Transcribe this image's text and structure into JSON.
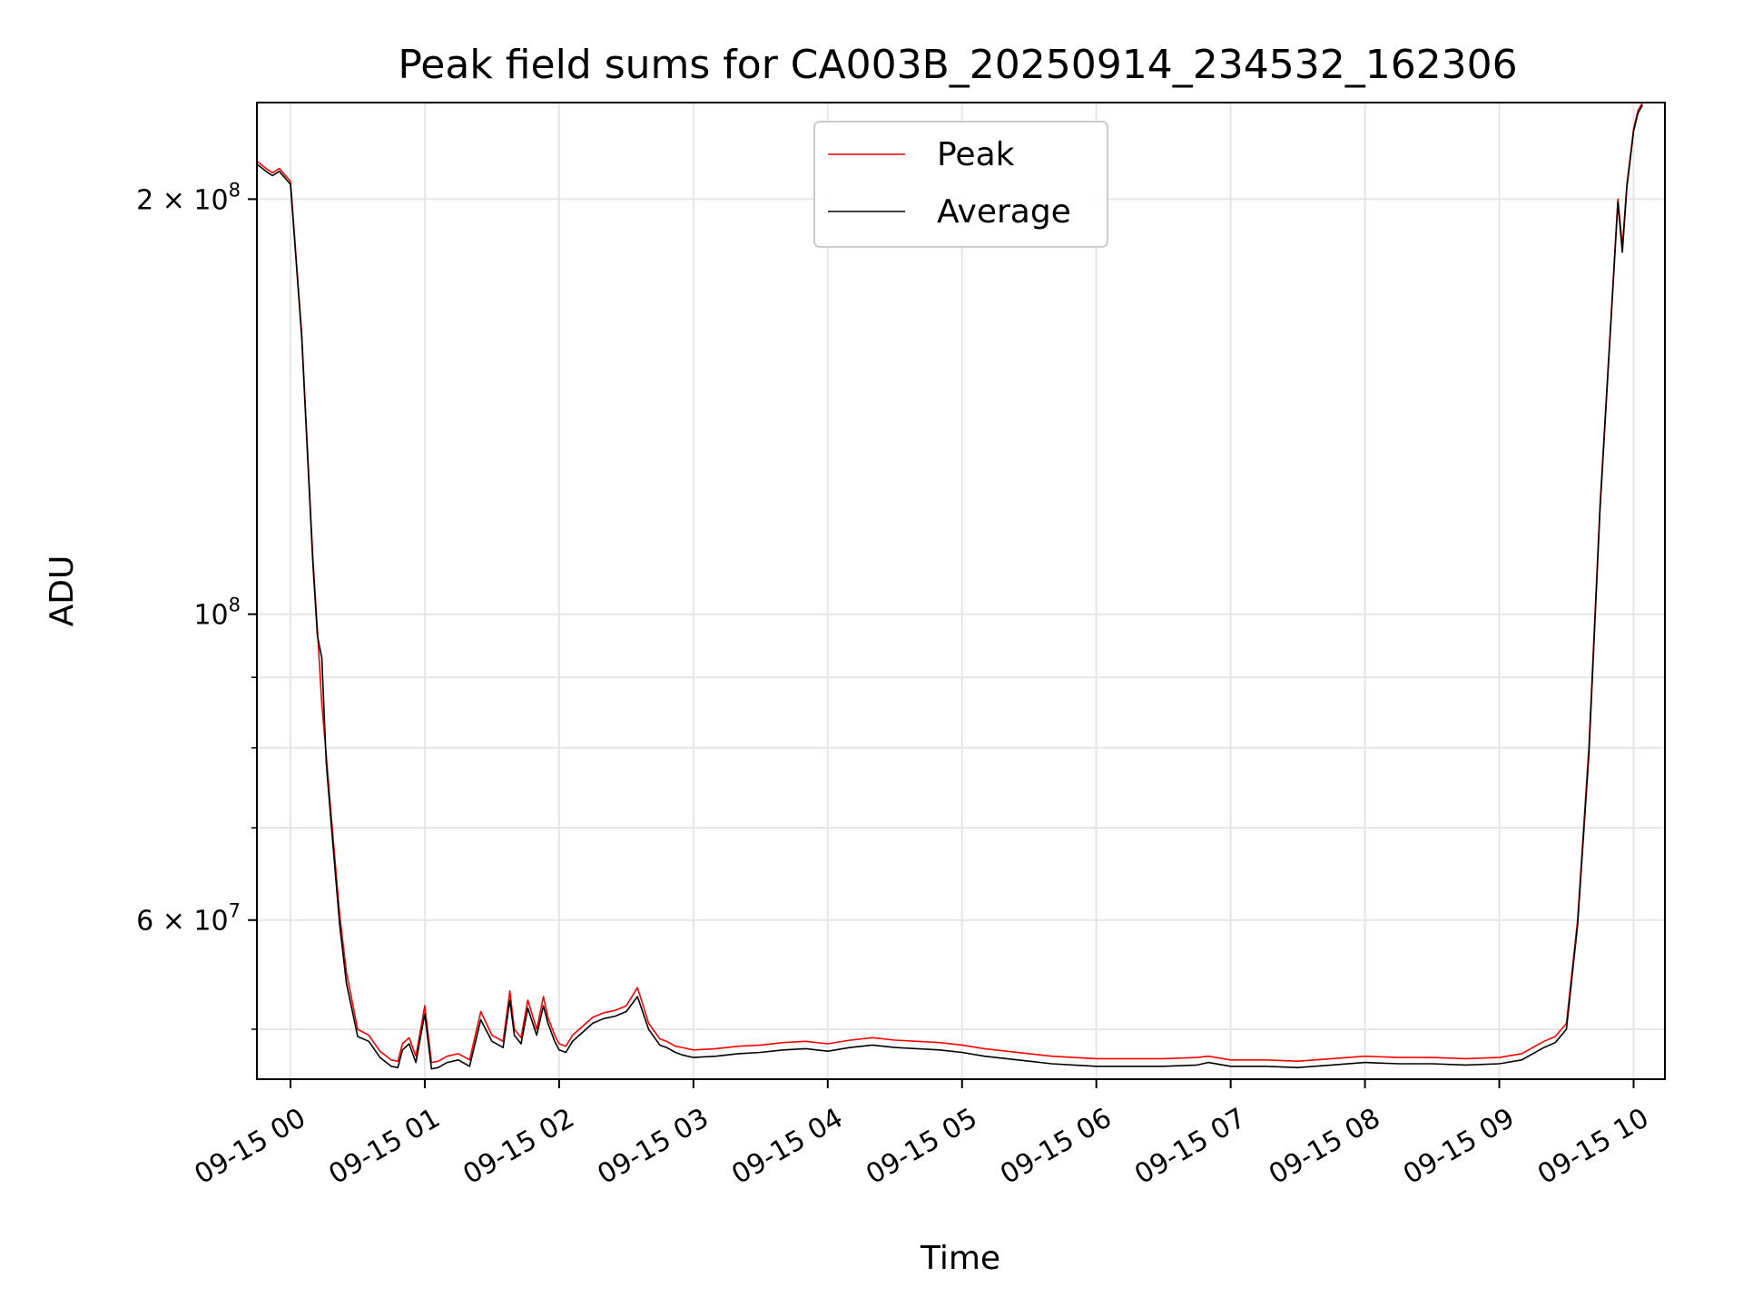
{
  "chart_data": {
    "type": "line",
    "title": "Peak field sums for CA003B_20250914_234532_162306",
    "xlabel": "Time",
    "ylabel": "ADU",
    "yscale": "log",
    "ylim": [
      46000000,
      235000000
    ],
    "xlim": [
      "2025-09-14 23:45",
      "2025-09-15 10:14"
    ],
    "grid": true,
    "legend_location": "top-center",
    "x_ticks": [
      "09-15 00",
      "09-15 01",
      "09-15 02",
      "09-15 03",
      "09-15 04",
      "09-15 05",
      "09-15 06",
      "09-15 07",
      "09-15 08",
      "09-15 09",
      "09-15 10"
    ],
    "y_ticks": [
      {
        "value": 200000000,
        "label_base": "2 × 10",
        "label_exp": "8"
      },
      {
        "value": 100000000,
        "label_base": "10",
        "label_exp": "8"
      },
      {
        "value": 60000000,
        "label_base": "6 × 10",
        "label_exp": "7"
      }
    ],
    "y_minor_ticks": [
      50000000,
      70000000,
      80000000,
      90000000
    ],
    "x": [
      "23:45",
      "23:50",
      "23:52",
      "23:55",
      "00:00",
      "00:05",
      "00:10",
      "00:12",
      "00:14",
      "00:16",
      "00:18",
      "00:20",
      "00:22",
      "00:25",
      "00:30",
      "00:35",
      "00:40",
      "00:45",
      "00:48",
      "00:50",
      "00:53",
      "00:56",
      "01:00",
      "01:03",
      "01:06",
      "01:10",
      "01:15",
      "01:20",
      "01:25",
      "01:30",
      "01:35",
      "01:38",
      "01:40",
      "01:43",
      "01:46",
      "01:50",
      "01:53",
      "01:55",
      "01:58",
      "02:00",
      "02:03",
      "02:06",
      "02:09",
      "02:12",
      "02:15",
      "02:20",
      "02:25",
      "02:30",
      "02:35",
      "02:40",
      "02:45",
      "02:48",
      "02:52",
      "02:55",
      "03:00",
      "03:10",
      "03:20",
      "03:30",
      "03:40",
      "03:50",
      "04:00",
      "04:10",
      "04:20",
      "04:30",
      "04:40",
      "04:50",
      "05:00",
      "05:10",
      "05:20",
      "05:30",
      "05:40",
      "05:50",
      "06:00",
      "06:15",
      "06:30",
      "06:45",
      "06:50",
      "07:00",
      "07:15",
      "07:30",
      "07:45",
      "08:00",
      "08:15",
      "08:30",
      "08:45",
      "09:00",
      "09:10",
      "09:15",
      "09:20",
      "09:25",
      "09:30",
      "09:35",
      "09:40",
      "09:45",
      "09:50",
      "09:53",
      "09:55",
      "09:57",
      "10:00",
      "10:02",
      "10:04"
    ],
    "series": [
      {
        "name": "Peak",
        "color": "#ff0000",
        "values": [
          213000000,
          210000000,
          209000000,
          210500000,
          206000000,
          160000000,
          110000000,
          97500000,
          86000000,
          79000000,
          72000000,
          66000000,
          60500000,
          55000000,
          50000000,
          49500000,
          48200000,
          47500000,
          47400000,
          48800000,
          49300000,
          47800000,
          52000000,
          47300000,
          47400000,
          47800000,
          48000000,
          47500000,
          51500000,
          49500000,
          49000000,
          53300000,
          50000000,
          49300000,
          52500000,
          50000000,
          52800000,
          51000000,
          49500000,
          48800000,
          48600000,
          49500000,
          50000000,
          50500000,
          51000000,
          51400000,
          51600000,
          52000000,
          53600000,
          50500000,
          49200000,
          49000000,
          48600000,
          48500000,
          48300000,
          48400000,
          48600000,
          48700000,
          48900000,
          49000000,
          48800000,
          49100000,
          49300000,
          49100000,
          49000000,
          48900000,
          48700000,
          48400000,
          48200000,
          48000000,
          47800000,
          47700000,
          47600000,
          47600000,
          47600000,
          47700000,
          47800000,
          47500000,
          47500000,
          47400000,
          47600000,
          47800000,
          47700000,
          47700000,
          47600000,
          47700000,
          48000000,
          48500000,
          49000000,
          49400000,
          50500000,
          60000000,
          80000000,
          120000000,
          165000000,
          200000000,
          185000000,
          205000000,
          225000000,
          232000000,
          235000000
        ]
      },
      {
        "name": "Average",
        "color": "#000000",
        "values": [
          212000000,
          209000000,
          208000000,
          209500000,
          205000000,
          159000000,
          109000000,
          96500000,
          93000000,
          78000000,
          71000000,
          65000000,
          59500000,
          54000000,
          49400000,
          49000000,
          47700000,
          47000000,
          46900000,
          48300000,
          48800000,
          47300000,
          51300000,
          46800000,
          46900000,
          47300000,
          47500000,
          47000000,
          50800000,
          49000000,
          48500000,
          52500000,
          49500000,
          48800000,
          51800000,
          49500000,
          52000000,
          50500000,
          49000000,
          48300000,
          48100000,
          49000000,
          49500000,
          50000000,
          50500000,
          50900000,
          51100000,
          51500000,
          52800000,
          50000000,
          48700000,
          48500000,
          48100000,
          47900000,
          47700000,
          47800000,
          48000000,
          48100000,
          48300000,
          48400000,
          48200000,
          48500000,
          48700000,
          48500000,
          48400000,
          48300000,
          48100000,
          47800000,
          47600000,
          47400000,
          47200000,
          47100000,
          47000000,
          47000000,
          47000000,
          47100000,
          47300000,
          47000000,
          47000000,
          46900000,
          47100000,
          47300000,
          47200000,
          47200000,
          47100000,
          47200000,
          47500000,
          48000000,
          48500000,
          48900000,
          50000000,
          59500000,
          79000000,
          119000000,
          164000000,
          199000000,
          183000000,
          204000000,
          224000000,
          231000000,
          234000000
        ]
      }
    ]
  }
}
